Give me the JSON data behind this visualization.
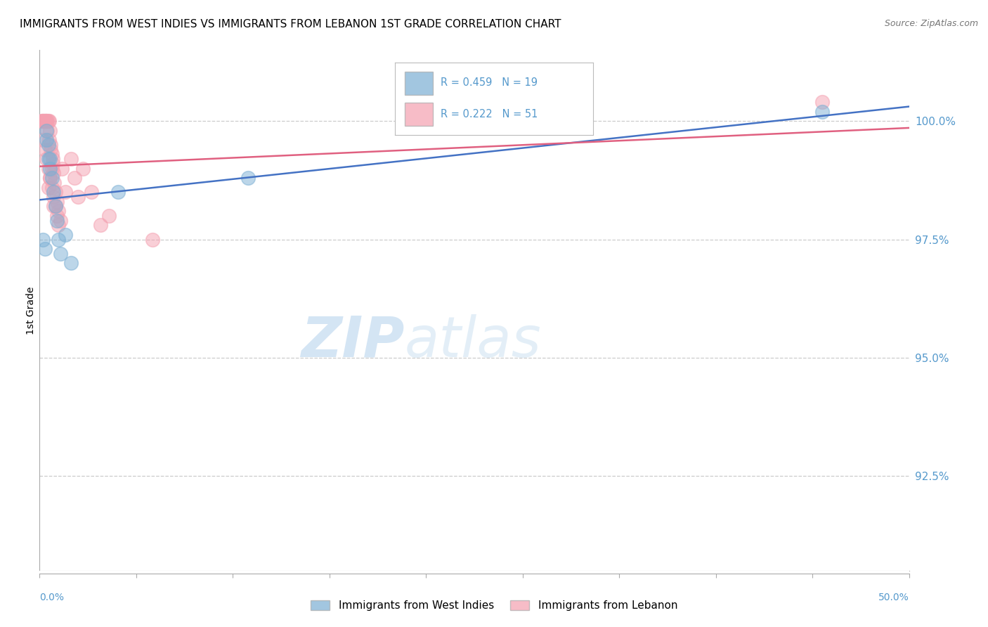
{
  "title": "IMMIGRANTS FROM WEST INDIES VS IMMIGRANTS FROM LEBANON 1ST GRADE CORRELATION CHART",
  "source": "Source: ZipAtlas.com",
  "ylabel": "1st Grade",
  "ytick_values": [
    100.0,
    97.5,
    95.0,
    92.5
  ],
  "xlim": [
    0.0,
    50.0
  ],
  "ylim": [
    90.5,
    101.5
  ],
  "legend_blue_label": "Immigrants from West Indies",
  "legend_pink_label": "Immigrants from Lebanon",
  "legend_blue_r": "R = 0.459",
  "legend_blue_n": "N = 19",
  "legend_pink_r": "R = 0.222",
  "legend_pink_n": "N = 51",
  "blue_color": "#7BAFD4",
  "pink_color": "#F4A0B0",
  "blue_line_color": "#4472C4",
  "pink_line_color": "#E06080",
  "grid_color": "#CCCCCC",
  "axis_color": "#AAAAAA",
  "tick_label_color": "#5599CC",
  "watermark_color": "#D0E8F8",
  "blue_x": [
    0.2,
    0.3,
    0.4,
    0.5,
    0.6,
    0.7,
    0.8,
    0.9,
    1.0,
    1.1,
    1.2,
    1.5,
    0.4,
    0.5,
    0.6,
    4.5,
    12.0,
    45.0,
    1.8
  ],
  "blue_y": [
    97.5,
    97.3,
    99.6,
    99.2,
    99.0,
    98.8,
    98.5,
    98.2,
    97.9,
    97.5,
    97.2,
    97.6,
    99.8,
    99.5,
    99.2,
    98.5,
    98.8,
    100.2,
    97.0
  ],
  "pink_x": [
    0.1,
    0.15,
    0.2,
    0.25,
    0.3,
    0.35,
    0.4,
    0.45,
    0.5,
    0.55,
    0.6,
    0.65,
    0.7,
    0.75,
    0.8,
    0.85,
    0.9,
    1.0,
    1.1,
    1.2,
    1.3,
    1.5,
    1.8,
    2.0,
    2.5,
    3.0,
    0.2,
    0.3,
    0.4,
    0.5,
    0.6,
    0.7,
    0.8,
    0.9,
    1.0,
    1.1,
    0.25,
    0.35,
    0.45,
    0.55,
    0.65,
    0.75,
    4.0,
    6.5,
    0.5,
    0.6,
    0.7,
    0.8,
    2.2,
    3.5,
    45.0
  ],
  "pink_y": [
    100.0,
    100.0,
    100.0,
    100.0,
    100.0,
    100.0,
    100.0,
    100.0,
    100.0,
    100.0,
    99.8,
    99.5,
    99.3,
    99.1,
    98.9,
    98.7,
    98.5,
    98.3,
    98.1,
    97.9,
    99.0,
    98.5,
    99.2,
    98.8,
    99.0,
    98.5,
    99.6,
    99.4,
    99.2,
    99.0,
    98.8,
    98.6,
    98.4,
    98.2,
    98.0,
    97.8,
    100.0,
    100.0,
    99.8,
    99.6,
    99.4,
    99.2,
    98.0,
    97.5,
    98.6,
    98.8,
    99.0,
    98.2,
    98.4,
    97.8,
    100.4
  ]
}
